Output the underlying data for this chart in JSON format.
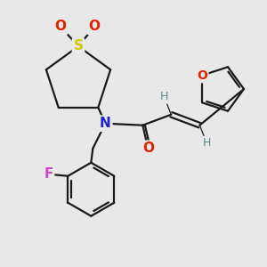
{
  "bg_color": "#e8e8e8",
  "bond_color": "#1a1a1a",
  "S_color": "#cccc00",
  "O_color": "#dd2200",
  "N_color": "#2222cc",
  "F_color": "#cc44cc",
  "furan_O_color": "#dd2200",
  "H_color": "#5a8a8a",
  "figsize": [
    3.0,
    3.0
  ],
  "dpi": 100,
  "xlim": [
    0,
    300
  ],
  "ylim": [
    0,
    300
  ]
}
